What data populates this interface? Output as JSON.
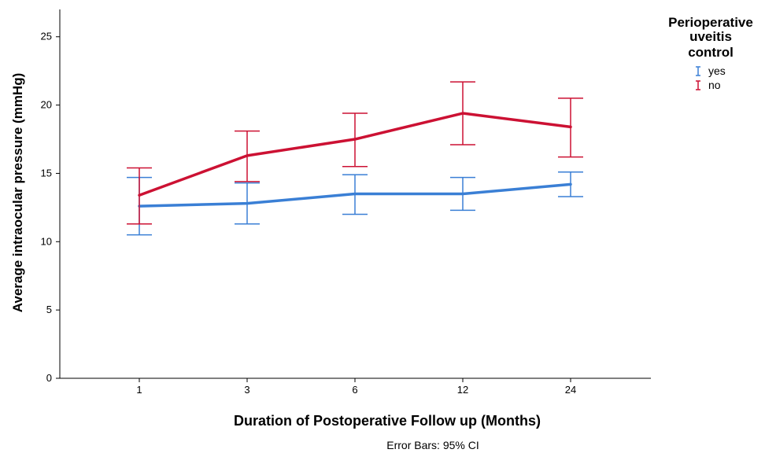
{
  "chart_data": {
    "type": "line",
    "xlabel": "Duration of Postoperative Follow up (Months)",
    "ylabel": "Average intraocular pressure (mmHg)",
    "categories": [
      "1",
      "3",
      "6",
      "12",
      "24"
    ],
    "ylim": [
      0,
      27
    ],
    "yticks": [
      0,
      5,
      10,
      15,
      20,
      25
    ],
    "grid": false,
    "legend": {
      "title": "Perioperative uveitis control",
      "title_lines": [
        "Perioperative",
        "uveitis",
        "control"
      ],
      "placement": "top-right, outside plot"
    },
    "series": [
      {
        "name": "yes",
        "color": "#3a7fd5",
        "values": [
          12.6,
          12.8,
          13.5,
          13.5,
          14.2
        ],
        "ci_upper": [
          14.7,
          14.3,
          14.9,
          14.7,
          15.1
        ],
        "ci_lower": [
          10.5,
          11.3,
          12.0,
          12.3,
          13.3
        ]
      },
      {
        "name": "no",
        "color": "#cc1133",
        "values": [
          13.4,
          16.3,
          17.5,
          19.4,
          18.4
        ],
        "ci_upper": [
          15.4,
          18.1,
          19.4,
          21.7,
          20.5
        ],
        "ci_lower": [
          11.3,
          14.4,
          15.5,
          17.1,
          16.2
        ]
      }
    ],
    "annotation": "Error Bars: 95% CI"
  }
}
